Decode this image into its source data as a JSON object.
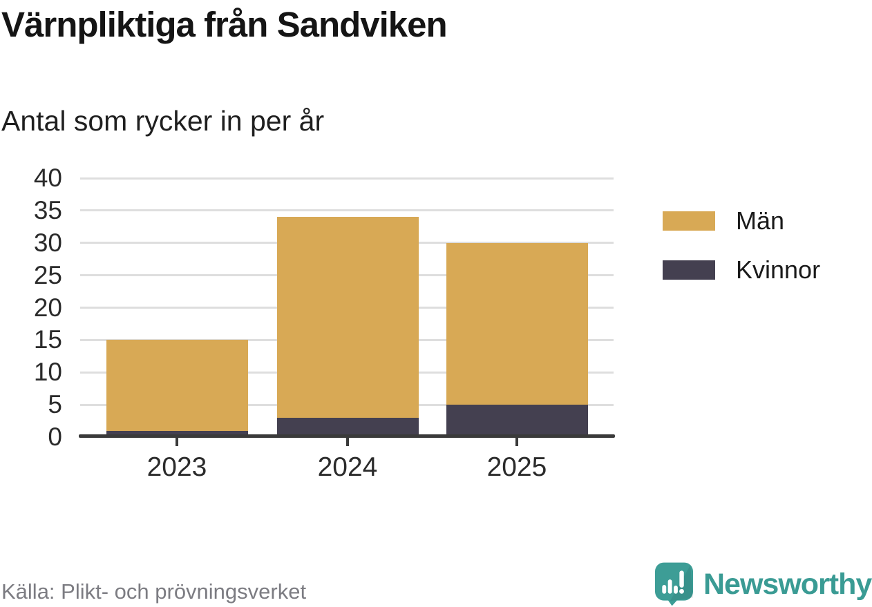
{
  "header": {
    "title": "Värnpliktiga från Sandviken",
    "subtitle": "Antal som rycker in per år"
  },
  "chart_data": {
    "type": "bar",
    "stacked": true,
    "title": "Värnpliktiga från Sandviken",
    "subtitle": "Antal som rycker in per år",
    "categories": [
      "2023",
      "2024",
      "2025"
    ],
    "series": [
      {
        "name": "Män",
        "color": "#d8a955",
        "values": [
          14,
          31,
          25
        ]
      },
      {
        "name": "Kvinnor",
        "color": "#444050",
        "values": [
          1,
          3,
          5
        ]
      }
    ],
    "stack_bottom_to_top": [
      "Kvinnor",
      "Män"
    ],
    "totals": [
      15,
      34,
      30
    ],
    "xlabel": "",
    "ylabel": "",
    "ylim": [
      0,
      40
    ],
    "yticks": [
      0,
      5,
      10,
      15,
      20,
      25,
      30,
      35,
      40
    ],
    "grid": "horizontal",
    "legend_position": "right"
  },
  "footer": {
    "source": "Källa: Plikt- och prövningsverket",
    "brand": "Newsworthy"
  },
  "icons": {
    "logo_mark": "newsworthy-bar-chart-speech-bubble"
  },
  "colors": {
    "bar_men": "#d8a955",
    "bar_women": "#444050",
    "brand_teal": "#3a9b94",
    "gridline": "#dedede",
    "axis": "#3a3a3a",
    "text_dark": "#151515",
    "source_gray": "#7c7c82",
    "background": "#ffffff"
  }
}
